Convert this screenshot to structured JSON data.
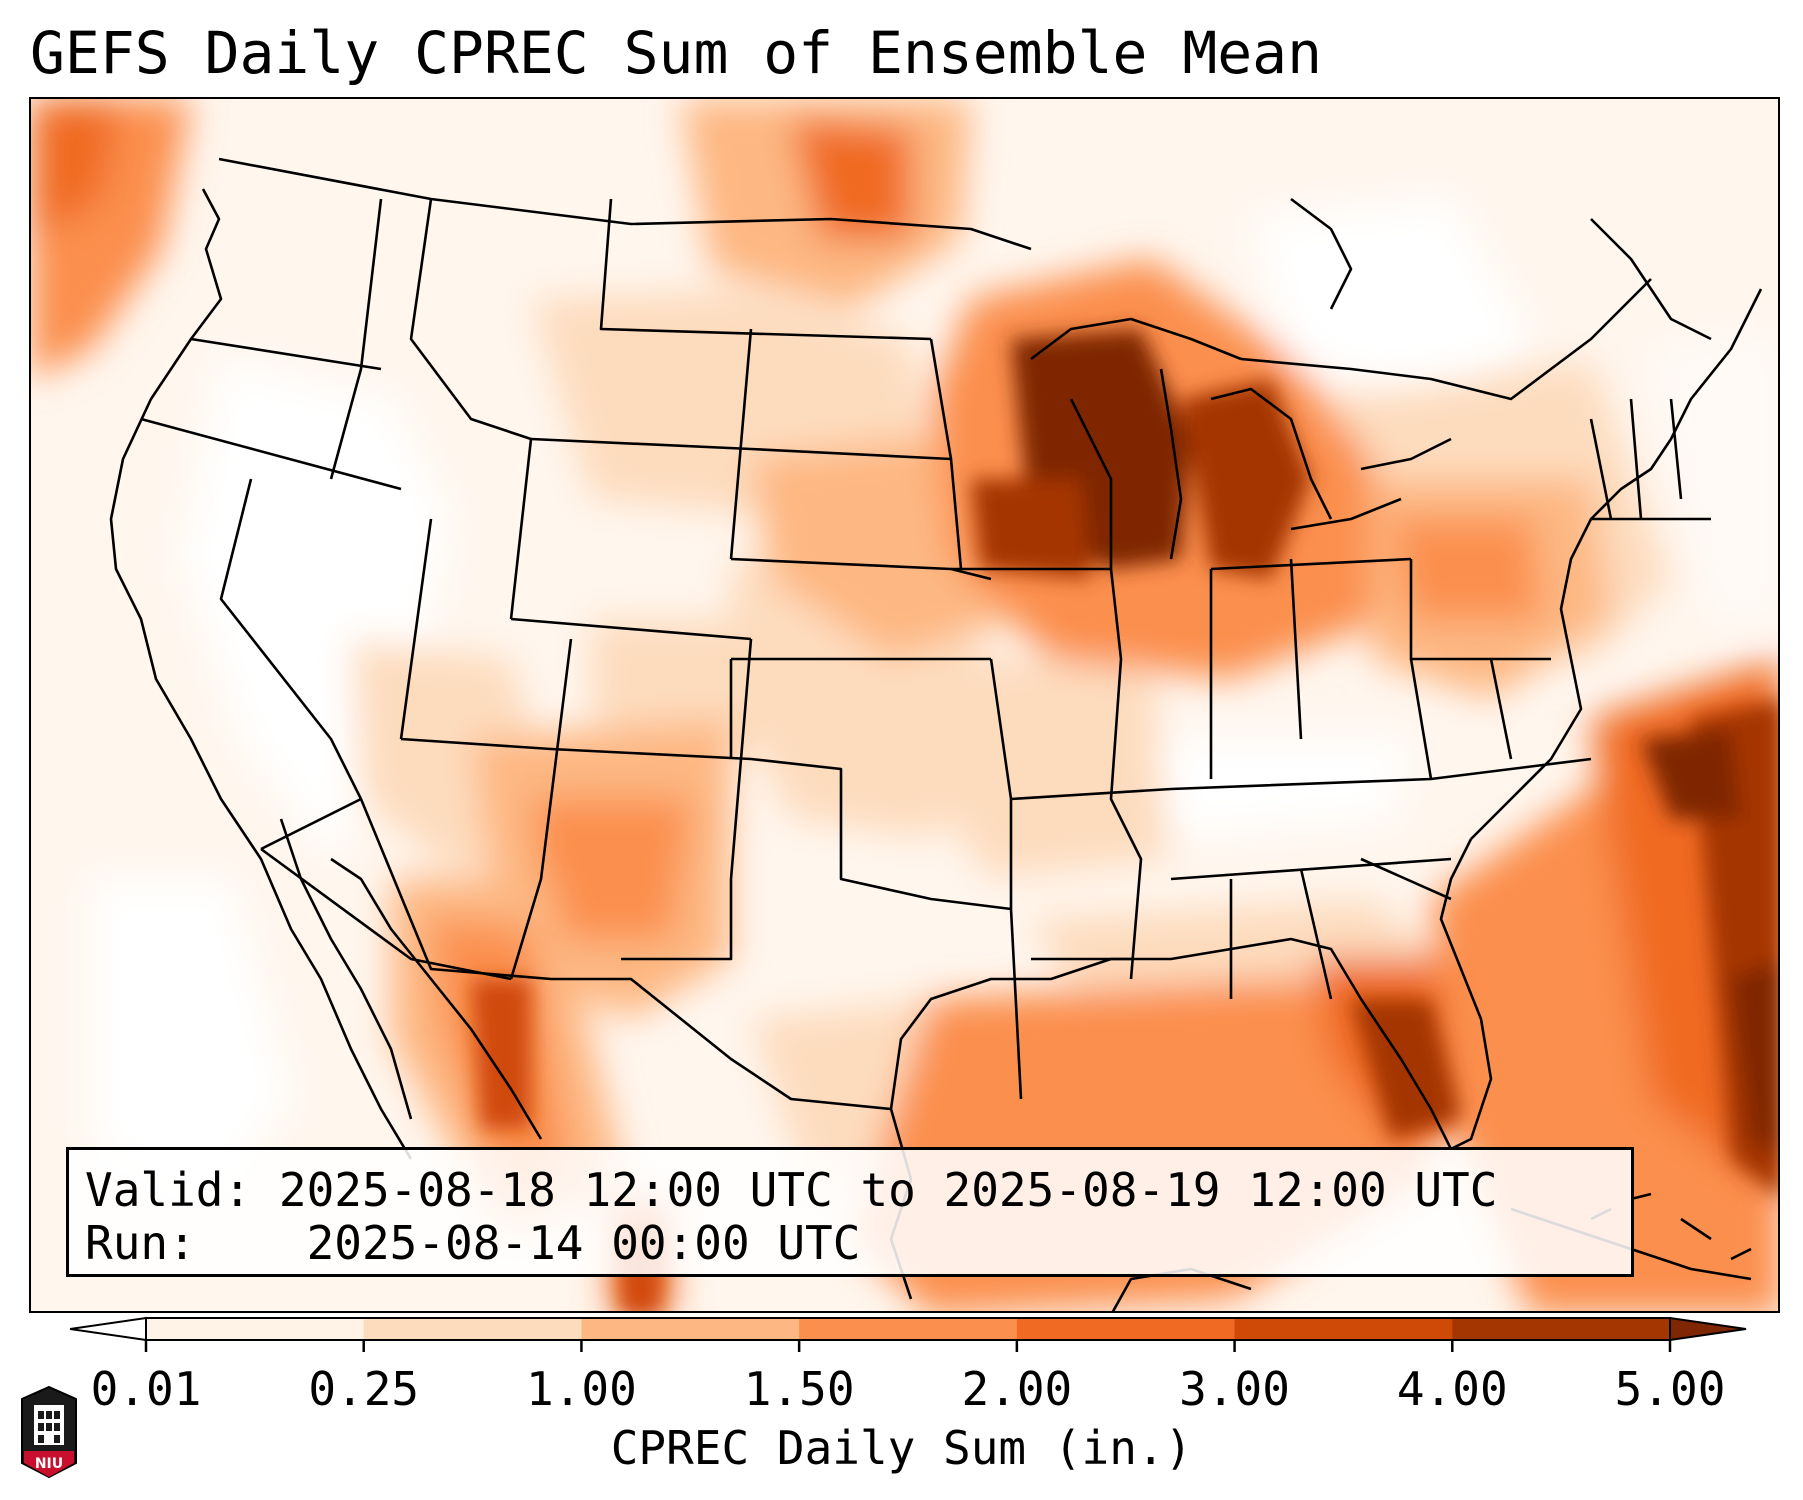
{
  "title": "GEFS Daily CPREC Sum of Ensemble Mean",
  "info": {
    "valid_label": "Valid:",
    "valid_value": "2025-08-18 12:00 UTC to 2025-08-19 12:00 UTC",
    "run_label": "Run:",
    "run_value": "2025-08-14 00:00 UTC"
  },
  "colorbar": {
    "label": "CPREC Daily Sum (in.)",
    "ticks": [
      "0.01",
      "0.25",
      "1.00",
      "1.50",
      "2.00",
      "3.00",
      "4.00",
      "5.00"
    ],
    "colors": [
      "#fff2e6",
      "#fddcbe",
      "#fdb782",
      "#fb8f4d",
      "#f06a24",
      "#d04a07",
      "#a43602"
    ],
    "over_color": "#7f2704",
    "under_color": "#ffffff"
  },
  "logo": {
    "text": "NIU",
    "color": "#c8102e"
  }
}
